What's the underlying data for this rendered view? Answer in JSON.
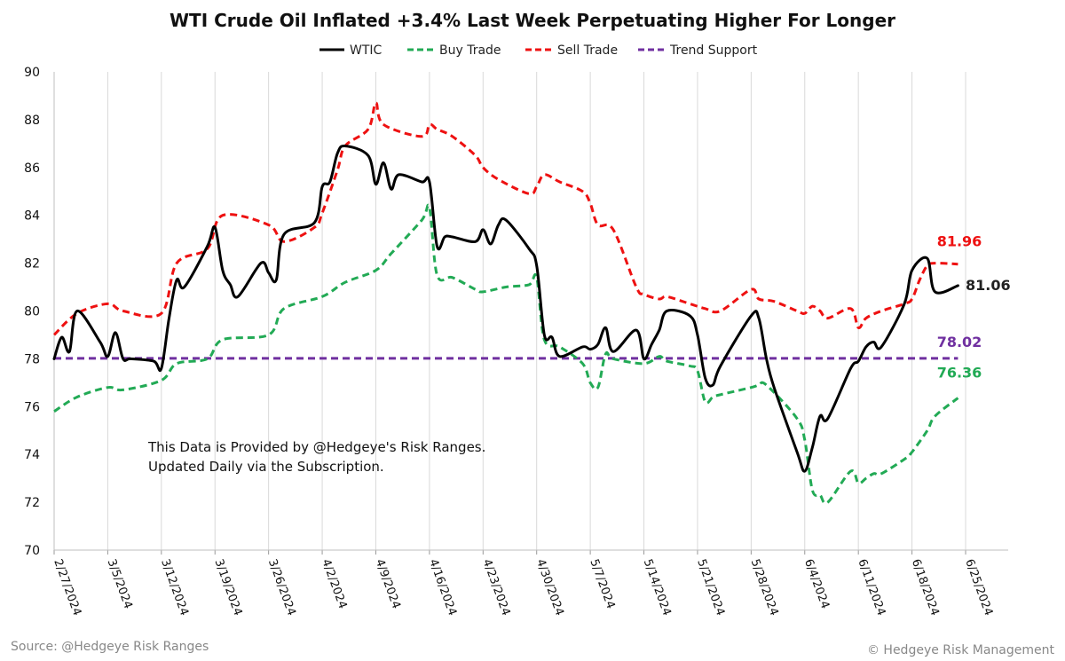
{
  "chart_data": {
    "type": "line",
    "title": "WTI Crude Oil Inflated +3.4% Last Week Perpetuating Higher For Longer",
    "xlabel": "",
    "ylabel": "",
    "ylim": [
      70,
      90
    ],
    "yticks": [
      70,
      72,
      74,
      76,
      78,
      80,
      82,
      84,
      86,
      88,
      90
    ],
    "xlim": [
      "2024-02-27",
      "2024-06-25"
    ],
    "xtick_labels": [
      "2/27/2024",
      "3/5/2024",
      "3/12/2024",
      "3/19/2024",
      "3/26/2024",
      "4/2/2024",
      "4/9/2024",
      "4/16/2024",
      "4/23/2024",
      "4/30/2024",
      "5/7/2024",
      "5/14/2024",
      "5/21/2024",
      "5/28/2024",
      "6/4/2024",
      "6/11/2024",
      "6/18/2024",
      "6/25/2024"
    ],
    "xtick_dates": [
      "2024-02-27",
      "2024-03-05",
      "2024-03-12",
      "2024-03-19",
      "2024-03-26",
      "2024-04-02",
      "2024-04-09",
      "2024-04-16",
      "2024-04-23",
      "2024-04-30",
      "2024-05-07",
      "2024-05-14",
      "2024-05-21",
      "2024-05-28",
      "2024-06-04",
      "2024-06-11",
      "2024-06-18",
      "2024-06-25"
    ],
    "grid": "vertical",
    "legend_position": "top-center",
    "series": [
      {
        "name": "WTIC",
        "color": "#000000",
        "style": "solid",
        "x": [
          "2024-02-27",
          "2024-02-28",
          "2024-02-29",
          "2024-03-01",
          "2024-03-04",
          "2024-03-05",
          "2024-03-06",
          "2024-03-07",
          "2024-03-08",
          "2024-03-11",
          "2024-03-12",
          "2024-03-13",
          "2024-03-14",
          "2024-03-15",
          "2024-03-18",
          "2024-03-19",
          "2024-03-20",
          "2024-03-21",
          "2024-03-22",
          "2024-03-25",
          "2024-03-26",
          "2024-03-27",
          "2024-03-28",
          "2024-04-01",
          "2024-04-02",
          "2024-04-03",
          "2024-04-04",
          "2024-04-05",
          "2024-04-08",
          "2024-04-09",
          "2024-04-10",
          "2024-04-11",
          "2024-04-12",
          "2024-04-15",
          "2024-04-16",
          "2024-04-17",
          "2024-04-18",
          "2024-04-19",
          "2024-04-22",
          "2024-04-23",
          "2024-04-24",
          "2024-04-25",
          "2024-04-26",
          "2024-04-29",
          "2024-04-30",
          "2024-05-01",
          "2024-05-02",
          "2024-05-03",
          "2024-05-06",
          "2024-05-07",
          "2024-05-08",
          "2024-05-09",
          "2024-05-10",
          "2024-05-13",
          "2024-05-14",
          "2024-05-15",
          "2024-05-16",
          "2024-05-17",
          "2024-05-20",
          "2024-05-21",
          "2024-05-22",
          "2024-05-23",
          "2024-05-24",
          "2024-05-28",
          "2024-05-29",
          "2024-05-30",
          "2024-05-31",
          "2024-06-03",
          "2024-06-04",
          "2024-06-05",
          "2024-06-06",
          "2024-06-07",
          "2024-06-10",
          "2024-06-11",
          "2024-06-12",
          "2024-06-13",
          "2024-06-14",
          "2024-06-17",
          "2024-06-18",
          "2024-06-20",
          "2024-06-21",
          "2024-06-24"
        ],
        "values": [
          78.0,
          78.9,
          78.3,
          80.0,
          78.7,
          78.1,
          79.1,
          78.0,
          78.0,
          77.9,
          77.6,
          79.7,
          81.3,
          81.0,
          82.7,
          83.5,
          81.7,
          81.1,
          80.6,
          82.0,
          81.6,
          81.3,
          83.2,
          83.7,
          85.2,
          85.4,
          86.6,
          86.9,
          86.5,
          85.3,
          86.2,
          85.1,
          85.7,
          85.4,
          85.4,
          82.7,
          83.1,
          83.1,
          82.9,
          83.4,
          82.8,
          83.6,
          83.8,
          82.6,
          81.9,
          79.0,
          78.9,
          78.1,
          78.5,
          78.4,
          78.6,
          79.3,
          78.3,
          79.2,
          78.0,
          78.6,
          79.2,
          80.0,
          79.8,
          79.0,
          77.2,
          76.9,
          77.7,
          79.8,
          79.7,
          78.0,
          76.8,
          74.1,
          73.3,
          74.3,
          75.6,
          75.5,
          77.6,
          77.9,
          78.5,
          78.7,
          78.5,
          80.3,
          81.7,
          82.2,
          80.8,
          81.06
        ]
      },
      {
        "name": "Buy Trade",
        "color": "#22aa55",
        "style": "dashed",
        "x": [
          "2024-02-27",
          "2024-03-01",
          "2024-03-05",
          "2024-03-07",
          "2024-03-12",
          "2024-03-14",
          "2024-03-18",
          "2024-03-20",
          "2024-03-26",
          "2024-03-28",
          "2024-04-02",
          "2024-04-05",
          "2024-04-09",
          "2024-04-11",
          "2024-04-15",
          "2024-04-16",
          "2024-04-17",
          "2024-04-19",
          "2024-04-22",
          "2024-04-23",
          "2024-04-26",
          "2024-04-29",
          "2024-04-30",
          "2024-05-01",
          "2024-05-03",
          "2024-05-06",
          "2024-05-07",
          "2024-05-08",
          "2024-05-09",
          "2024-05-10",
          "2024-05-14",
          "2024-05-16",
          "2024-05-17",
          "2024-05-20",
          "2024-05-21",
          "2024-05-22",
          "2024-05-23",
          "2024-05-24",
          "2024-05-28",
          "2024-05-29",
          "2024-05-30",
          "2024-06-03",
          "2024-06-04",
          "2024-06-05",
          "2024-06-06",
          "2024-06-07",
          "2024-06-10",
          "2024-06-11",
          "2024-06-12",
          "2024-06-13",
          "2024-06-14",
          "2024-06-17",
          "2024-06-18",
          "2024-06-20",
          "2024-06-21",
          "2024-06-24"
        ],
        "values": [
          75.8,
          76.4,
          76.8,
          76.7,
          77.1,
          77.8,
          78.0,
          78.8,
          79.0,
          80.1,
          80.6,
          81.2,
          81.7,
          82.4,
          83.8,
          84.3,
          81.5,
          81.4,
          80.9,
          80.8,
          81.0,
          81.1,
          81.4,
          78.8,
          78.5,
          77.8,
          77.0,
          76.8,
          78.2,
          78.0,
          77.8,
          78.1,
          77.9,
          77.7,
          77.5,
          76.2,
          76.4,
          76.5,
          76.8,
          76.9,
          76.9,
          75.5,
          74.6,
          72.5,
          72.3,
          72.0,
          73.3,
          72.8,
          73.0,
          73.2,
          73.2,
          73.8,
          74.1,
          75.0,
          75.6,
          76.36
        ]
      },
      {
        "name": "Sell Trade",
        "color": "#ee1111",
        "style": "dashed",
        "x": [
          "2024-02-27",
          "2024-03-01",
          "2024-03-05",
          "2024-03-07",
          "2024-03-12",
          "2024-03-14",
          "2024-03-18",
          "2024-03-20",
          "2024-03-26",
          "2024-03-28",
          "2024-04-01",
          "2024-04-02",
          "2024-04-04",
          "2024-04-05",
          "2024-04-08",
          "2024-04-09",
          "2024-04-10",
          "2024-04-15",
          "2024-04-16",
          "2024-04-17",
          "2024-04-19",
          "2024-04-22",
          "2024-04-23",
          "2024-04-25",
          "2024-04-29",
          "2024-04-30",
          "2024-05-01",
          "2024-05-03",
          "2024-05-06",
          "2024-05-07",
          "2024-05-08",
          "2024-05-10",
          "2024-05-13",
          "2024-05-14",
          "2024-05-16",
          "2024-05-17",
          "2024-05-20",
          "2024-05-22",
          "2024-05-24",
          "2024-05-28",
          "2024-05-29",
          "2024-05-31",
          "2024-06-03",
          "2024-06-04",
          "2024-06-05",
          "2024-06-06",
          "2024-06-07",
          "2024-06-10",
          "2024-06-11",
          "2024-06-12",
          "2024-06-14",
          "2024-06-17",
          "2024-06-18",
          "2024-06-19",
          "2024-06-20",
          "2024-06-21",
          "2024-06-24"
        ],
        "values": [
          79.0,
          79.9,
          80.3,
          80.0,
          79.9,
          82.0,
          82.6,
          84.0,
          83.6,
          82.9,
          83.5,
          84.1,
          85.9,
          86.9,
          87.6,
          88.7,
          87.8,
          87.3,
          87.8,
          87.6,
          87.3,
          86.5,
          86.0,
          85.5,
          84.9,
          85.2,
          85.7,
          85.4,
          85.0,
          84.5,
          83.6,
          83.4,
          81.0,
          80.7,
          80.5,
          80.6,
          80.3,
          80.1,
          80.0,
          80.9,
          80.5,
          80.4,
          80.0,
          79.9,
          80.2,
          80.0,
          79.7,
          80.1,
          79.3,
          79.7,
          80.0,
          80.3,
          80.5,
          81.3,
          81.9,
          82.0,
          81.96
        ]
      },
      {
        "name": "Trend Support",
        "color": "#7030a0",
        "style": "dashed",
        "x": [
          "2024-02-27",
          "2024-06-24"
        ],
        "values": [
          78.02,
          78.02
        ]
      }
    ],
    "end_labels": [
      {
        "text": "81.96",
        "series": "Sell Trade",
        "color": "#ee1111"
      },
      {
        "text": "81.06",
        "series": "WTIC",
        "color": "#222222"
      },
      {
        "text": "78.02",
        "series": "Trend Support",
        "color": "#7030a0"
      },
      {
        "text": "76.36",
        "series": "Buy Trade",
        "color": "#22aa55"
      }
    ],
    "annotation": {
      "line1": "This Data is Provided by @Hedgeye's Risk Ranges.",
      "line2": "Updated Daily via the Subscription."
    }
  },
  "footer": {
    "source": "Source: @Hedgeye Risk Ranges",
    "copyright": "© Hedgeye Risk Management"
  }
}
